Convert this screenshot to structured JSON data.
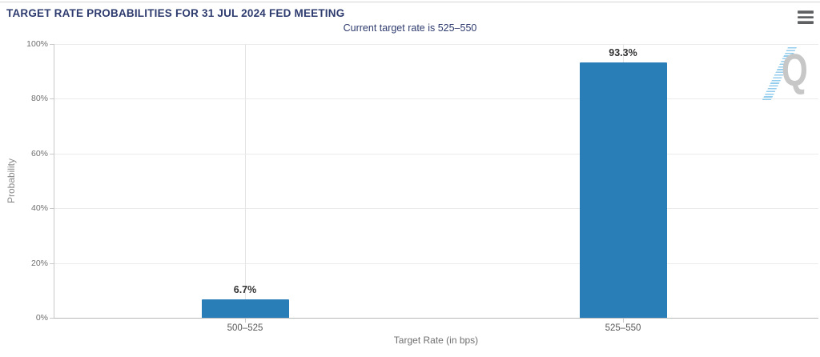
{
  "header": {
    "menu_icon": "hamburger-menu-icon"
  },
  "chart_data": {
    "type": "bar",
    "title": "TARGET RATE PROBABILITIES FOR 31 JUL 2024 FED MEETING",
    "subtitle": "Current target rate is 525–550",
    "categories": [
      "500–525",
      "525–550"
    ],
    "values": [
      6.7,
      93.3
    ],
    "value_labels": [
      "6.7%",
      "93.3%"
    ],
    "xlabel": "Target Rate (in bps)",
    "ylabel": "Probability",
    "ylim": [
      0,
      100
    ],
    "ytick_values": [
      0,
      20,
      40,
      60,
      80,
      100
    ],
    "ytick_labels": [
      "0%",
      "20%",
      "40%",
      "60%",
      "80%",
      "100%"
    ],
    "grid": true,
    "legend": false,
    "bar_color": "#2a7eb8",
    "watermark_letter": "Q"
  },
  "colors": {
    "title_navy": "#2e3b6e",
    "bar_blue": "#2a7eb8",
    "grid_line": "#ebebeb",
    "axis_line": "#c9c9c9",
    "tick_text": "#6f6f6f",
    "value_label_text": "#333333"
  }
}
